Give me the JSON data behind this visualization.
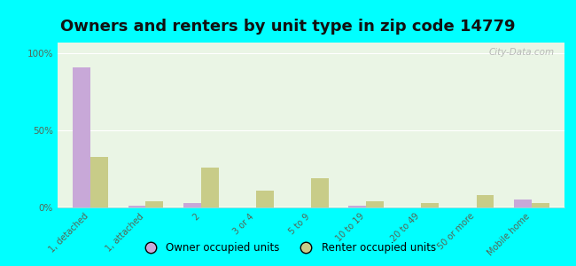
{
  "title": "Owners and renters by unit type in zip code 14779",
  "categories": [
    "1, detached",
    "1, attached",
    "2",
    "3 or 4",
    "5 to 9",
    "10 to 19",
    "20 to 49",
    "50 or more",
    "Mobile home"
  ],
  "owner_values": [
    91,
    1,
    3,
    0,
    0,
    1,
    0,
    0,
    5
  ],
  "renter_values": [
    33,
    4,
    26,
    11,
    19,
    4,
    3,
    8,
    3
  ],
  "owner_color": "#c8a8d8",
  "renter_color": "#c8cc88",
  "background_top": "#eaf5e5",
  "background_bottom": "#f8fef0",
  "outer_bg": "#00ffff",
  "ylabel_ticks": [
    "0%",
    "50%",
    "100%"
  ],
  "ytick_vals": [
    0,
    50,
    100
  ],
  "ylim": [
    0,
    107
  ],
  "owner_label": "Owner occupied units",
  "renter_label": "Renter occupied units",
  "title_fontsize": 13,
  "watermark": "City-Data.com"
}
